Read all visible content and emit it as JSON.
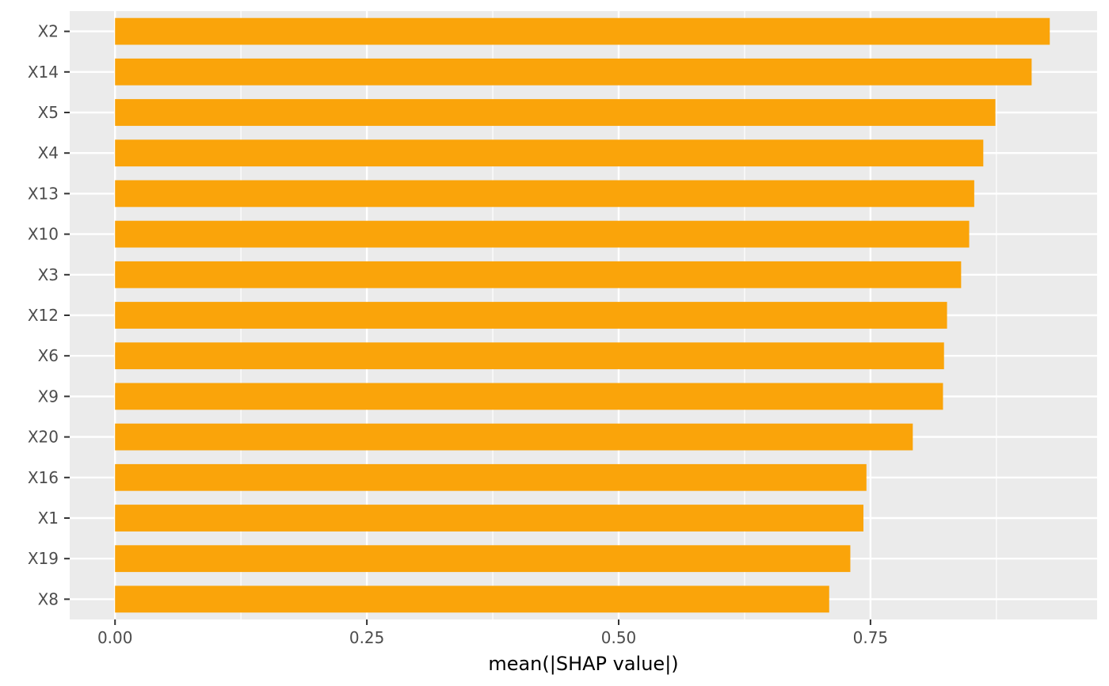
{
  "chart_data": {
    "type": "bar",
    "orientation": "horizontal",
    "categories": [
      "X2",
      "X14",
      "X5",
      "X4",
      "X13",
      "X10",
      "X3",
      "X12",
      "X6",
      "X9",
      "X20",
      "X16",
      "X1",
      "X19",
      "X8"
    ],
    "values": [
      0.928,
      0.91,
      0.874,
      0.862,
      0.853,
      0.848,
      0.84,
      0.826,
      0.823,
      0.822,
      0.792,
      0.746,
      0.743,
      0.73,
      0.709
    ],
    "xlabel": "mean(|SHAP value|)",
    "ylabel": "",
    "xlim": [
      -0.045,
      0.975
    ],
    "xticks": [
      0.0,
      0.25,
      0.5,
      0.75
    ],
    "xtick_labels": [
      "0.00",
      "0.25",
      "0.50",
      "0.75"
    ],
    "grid": true,
    "bar_color": "#FAA40A",
    "panel_color": "#EBEBEB",
    "grid_color": "#FFFFFF"
  }
}
